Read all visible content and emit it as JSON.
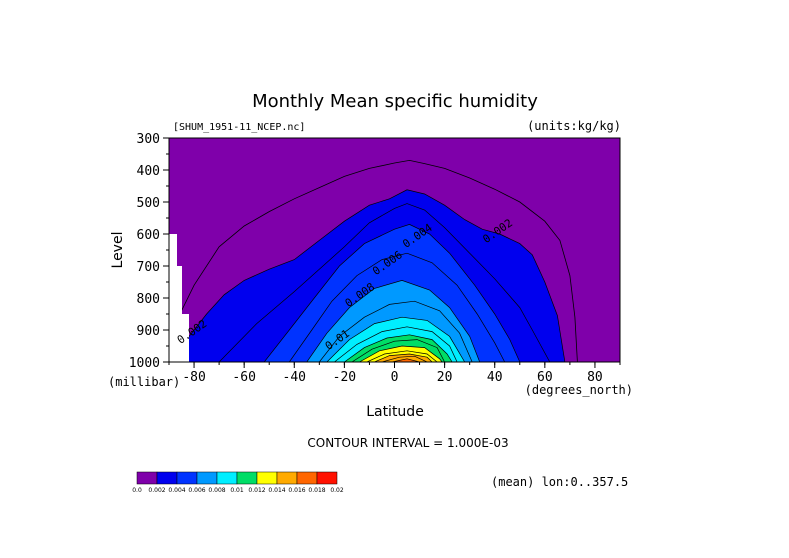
{
  "chart_data": {
    "type": "contour",
    "title": "Monthly Mean specific humidity",
    "file_label": "[SHUM_1951-11_NCEP.nc]",
    "units_label": "(units:kg/kg)",
    "xlabel": "Latitude",
    "x_unit": "(degrees_north)",
    "ylabel": "Level",
    "y_unit": "(millibar)",
    "xlim": [
      -90,
      90
    ],
    "ylim": [
      1000,
      300
    ],
    "x_ticks": [
      "-80",
      "-60",
      "-40",
      "-20",
      "0",
      "20",
      "40",
      "60",
      "80"
    ],
    "y_ticks": [
      "300",
      "400",
      "500",
      "600",
      "700",
      "800",
      "900",
      "1000"
    ],
    "contour_interval_text": "CONTOUR INTERVAL = 1.000E-03",
    "footer_text": "(mean) lon:0..357.5",
    "background_color": "#7f00aa",
    "colorbar": {
      "colors": [
        "#7f00aa",
        "#0000ee",
        "#0033ff",
        "#0099ff",
        "#00eeff",
        "#00dd66",
        "#ffff00",
        "#ffaa00",
        "#ff6600",
        "#ff1100"
      ],
      "labels": [
        "0.0",
        "0.002",
        "0.004",
        "0.006",
        "0.008",
        "0.01",
        "0.012",
        "0.014",
        "0.016",
        "0.018",
        "0.02"
      ]
    },
    "contour_labels": [
      {
        "text": "0.002",
        "lat": 42,
        "lev": 600
      },
      {
        "text": "0.004",
        "lat": 10,
        "lev": 615
      },
      {
        "text": "0.006",
        "lat": -2,
        "lev": 700
      },
      {
        "text": "0.008",
        "lat": -13,
        "lev": 800
      },
      {
        "text": "0.01",
        "lat": -22,
        "lev": 940
      },
      {
        "text": "0.002",
        "lat": -80,
        "lev": 915
      }
    ],
    "outer_contour_0_002": [
      [
        -85,
        840
      ],
      [
        -80,
        760
      ],
      [
        -70,
        640
      ],
      [
        -60,
        575
      ],
      [
        -50,
        530
      ],
      [
        -40,
        490
      ],
      [
        -30,
        455
      ],
      [
        -20,
        420
      ],
      [
        -10,
        395
      ],
      [
        0,
        378
      ],
      [
        6,
        370
      ],
      [
        12,
        380
      ],
      [
        20,
        395
      ],
      [
        30,
        425
      ],
      [
        40,
        460
      ],
      [
        50,
        500
      ],
      [
        60,
        560
      ],
      [
        66,
        620
      ],
      [
        70,
        730
      ],
      [
        72,
        860
      ],
      [
        73,
        1000
      ]
    ],
    "bands": [
      {
        "level": 0.002,
        "profile": [
          [
            -92,
            1000
          ],
          [
            -88,
            990
          ],
          [
            -82,
            920
          ],
          [
            -75,
            850
          ],
          [
            -68,
            790
          ],
          [
            -60,
            745
          ],
          [
            -50,
            710
          ],
          [
            -40,
            680
          ],
          [
            -30,
            620
          ],
          [
            -20,
            560
          ],
          [
            -10,
            510
          ],
          [
            -2,
            490
          ],
          [
            5,
            462
          ],
          [
            12,
            475
          ],
          [
            20,
            510
          ],
          [
            28,
            555
          ],
          [
            35,
            585
          ],
          [
            42,
            600
          ],
          [
            50,
            630
          ],
          [
            55,
            665
          ],
          [
            60,
            750
          ],
          [
            65,
            855
          ],
          [
            68,
            1000
          ]
        ]
      },
      {
        "level": 0.003,
        "profile": [
          [
            -70,
            1000
          ],
          [
            -55,
            880
          ],
          [
            -40,
            780
          ],
          [
            -30,
            710
          ],
          [
            -20,
            640
          ],
          [
            -10,
            565
          ],
          [
            0,
            520
          ],
          [
            5,
            505
          ],
          [
            12,
            525
          ],
          [
            20,
            580
          ],
          [
            30,
            660
          ],
          [
            40,
            740
          ],
          [
            50,
            830
          ],
          [
            55,
            900
          ],
          [
            62,
            1000
          ]
        ]
      },
      {
        "level": 0.004,
        "profile": [
          [
            -52,
            1000
          ],
          [
            -42,
            900
          ],
          [
            -32,
            800
          ],
          [
            -22,
            700
          ],
          [
            -12,
            630
          ],
          [
            0,
            585
          ],
          [
            6,
            570
          ],
          [
            14,
            600
          ],
          [
            22,
            660
          ],
          [
            32,
            760
          ],
          [
            40,
            850
          ],
          [
            46,
            930
          ],
          [
            50,
            1000
          ]
        ]
      },
      {
        "level": 0.005,
        "profile": [
          [
            -42,
            1000
          ],
          [
            -33,
            900
          ],
          [
            -25,
            810
          ],
          [
            -15,
            730
          ],
          [
            -5,
            680
          ],
          [
            5,
            660
          ],
          [
            15,
            690
          ],
          [
            25,
            760
          ],
          [
            33,
            850
          ],
          [
            40,
            940
          ],
          [
            44,
            1000
          ]
        ]
      },
      {
        "level": 0.006,
        "profile": [
          [
            -35,
            1000
          ],
          [
            -27,
            910
          ],
          [
            -18,
            830
          ],
          [
            -8,
            770
          ],
          [
            3,
            745
          ],
          [
            14,
            775
          ],
          [
            22,
            830
          ],
          [
            30,
            920
          ],
          [
            34,
            1000
          ]
        ]
      },
      {
        "level": 0.007,
        "profile": [
          [
            -30,
            1000
          ],
          [
            -22,
            920
          ],
          [
            -12,
            860
          ],
          [
            -2,
            820
          ],
          [
            8,
            810
          ],
          [
            18,
            840
          ],
          [
            26,
            910
          ],
          [
            31,
            1000
          ]
        ]
      },
      {
        "level": 0.008,
        "profile": [
          [
            -27,
            1000
          ],
          [
            -18,
            930
          ],
          [
            -8,
            880
          ],
          [
            3,
            860
          ],
          [
            13,
            870
          ],
          [
            22,
            920
          ],
          [
            28,
            1000
          ]
        ]
      },
      {
        "level": 0.009,
        "profile": [
          [
            -24,
            1000
          ],
          [
            -15,
            945
          ],
          [
            -5,
            905
          ],
          [
            5,
            890
          ],
          [
            15,
            905
          ],
          [
            22,
            950
          ],
          [
            25,
            1000
          ]
        ]
      },
      {
        "level": 0.01,
        "profile": [
          [
            -20,
            1000
          ],
          [
            -12,
            955
          ],
          [
            -3,
            925
          ],
          [
            6,
            915
          ],
          [
            15,
            930
          ],
          [
            21,
            975
          ],
          [
            23,
            1000
          ]
        ]
      },
      {
        "level": 0.011,
        "profile": [
          [
            -17,
            1000
          ],
          [
            -9,
            960
          ],
          [
            0,
            935
          ],
          [
            9,
            930
          ],
          [
            17,
            955
          ],
          [
            20,
            1000
          ]
        ]
      },
      {
        "level": 0.012,
        "profile": [
          [
            -14,
            1000
          ],
          [
            -6,
            965
          ],
          [
            3,
            950
          ],
          [
            12,
            955
          ],
          [
            18,
            990
          ],
          [
            19,
            1000
          ]
        ]
      },
      {
        "level": 0.013,
        "profile": [
          [
            -11,
            1000
          ],
          [
            -4,
            975
          ],
          [
            5,
            965
          ],
          [
            13,
            975
          ],
          [
            17,
            1000
          ]
        ]
      },
      {
        "level": 0.014,
        "profile": [
          [
            -8,
            1000
          ],
          [
            -2,
            980
          ],
          [
            6,
            975
          ],
          [
            13,
            985
          ],
          [
            15,
            1000
          ]
        ]
      },
      {
        "level": 0.015,
        "profile": [
          [
            -5,
            1000
          ],
          [
            2,
            985
          ],
          [
            8,
            982
          ],
          [
            13,
            1000
          ]
        ]
      },
      {
        "level": 0.016,
        "profile": [
          [
            -1,
            1000
          ],
          [
            5,
            990
          ],
          [
            10,
            1000
          ]
        ]
      }
    ]
  }
}
